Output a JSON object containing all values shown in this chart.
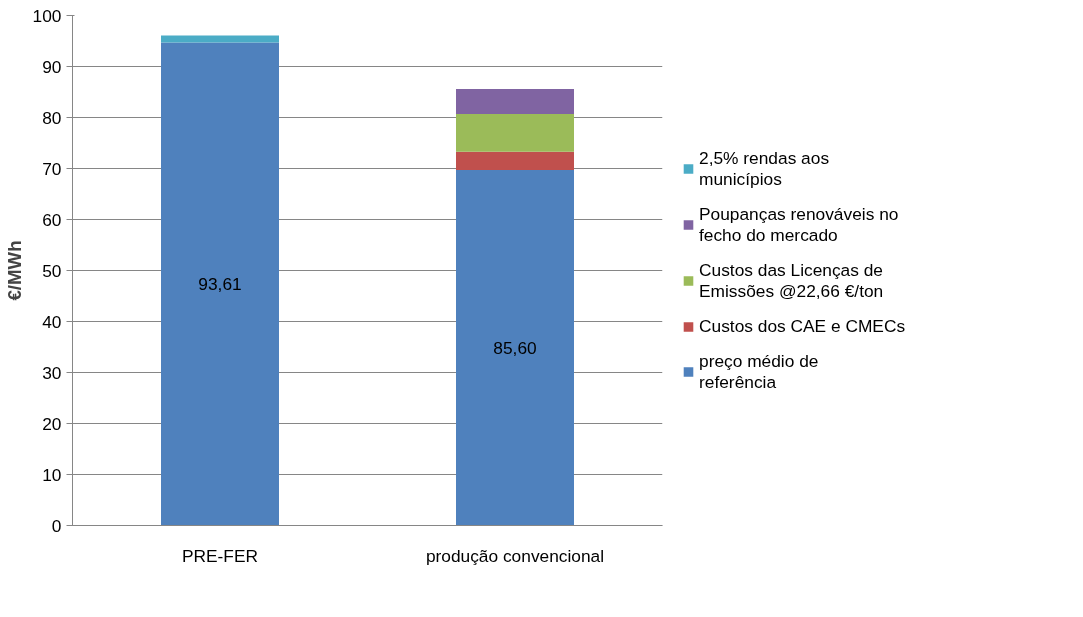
{
  "chart_data": {
    "type": "bar",
    "stacked": true,
    "ylabel": "€/MWh",
    "categories": [
      "PRE-FER",
      "produção convencional"
    ],
    "series": [
      {
        "name": "preço médio de referência",
        "color": "#4f81bd",
        "values": [
          94.7,
          69.7
        ]
      },
      {
        "name": "Custos dos CAE e CMECs",
        "color": "#c0504d",
        "values": [
          0,
          3.6
        ]
      },
      {
        "name": "Custos das Licenças de Emissões @22,66 €/ton",
        "color": "#9bbb59",
        "values": [
          0,
          7.4
        ]
      },
      {
        "name": "Poupanças renováveis no fecho do mercado",
        "color": "#8064a2",
        "values": [
          0,
          4.9
        ]
      },
      {
        "name": "2,5% rendas aos municípios",
        "color": "#4bacc6",
        "values": [
          1.4,
          0
        ]
      }
    ],
    "annotations": [
      "93,61",
      "85,60"
    ],
    "ylim": [
      0,
      100
    ],
    "yticks": [
      0,
      10,
      20,
      30,
      40,
      50,
      60,
      70,
      80,
      90,
      100
    ],
    "grid": "y",
    "legend": "right"
  }
}
